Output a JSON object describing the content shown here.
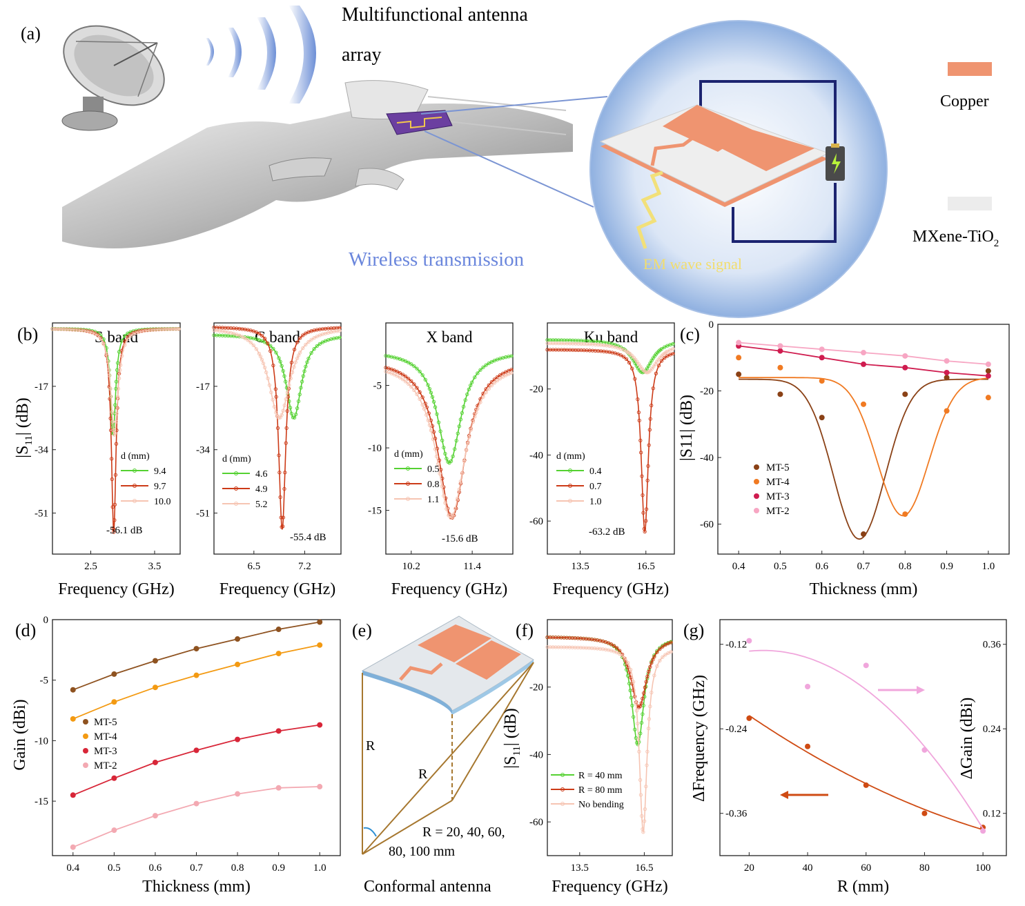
{
  "panel_a": {
    "label": "(a)",
    "title_line1": "Multifunctional antenna",
    "title_line2": "array",
    "wireless_label": "Wireless transmission",
    "em_label": "EM wave signal",
    "legend": [
      {
        "name": "Copper",
        "color": "#ef9470"
      },
      {
        "name": "MXene-TiO",
        "sub": "2",
        "color": "#ececec"
      }
    ]
  },
  "colors": {
    "green": "#54d131",
    "red": "#cc3a17",
    "pink": "#f6c4b2",
    "mt5": "#8a4116",
    "mt4": "#f07a22",
    "mt3": "#cf1c4f",
    "mt2": "#f7a6c3",
    "gain_mt5": "#8e5220",
    "gain_mt4": "#f39a12",
    "gain_mt3": "#d82638",
    "gain_mt2": "#f3a9b2",
    "g_pink": "#f0a6dc",
    "g_orange": "#cf4b13",
    "copper": "#ef9470"
  },
  "chart_data": [
    {
      "panel": "(b)",
      "type": "line",
      "title": "S band",
      "xlabel": "Frequency (GHz)",
      "ylabel": "|S11| (dB)",
      "xticks": [
        "2.5",
        "3.5"
      ],
      "yticks": [
        "-17",
        "-34",
        "-51"
      ],
      "xlim": [
        1.9,
        3.9
      ],
      "ylim": [
        -62,
        0
      ],
      "legend_title": "d (mm)",
      "annotation": "-56.1 dB",
      "series": [
        {
          "name": "9.4",
          "f0": 2.85,
          "depth": -30,
          "base": -1.5,
          "width": 0.05
        },
        {
          "name": "9.7",
          "f0": 2.86,
          "depth": -56.1,
          "base": -1.5,
          "width": 0.045
        },
        {
          "name": "10.0",
          "f0": 2.87,
          "depth": -30,
          "base": -1.5,
          "width": 0.07
        }
      ]
    },
    {
      "panel": "(b)",
      "type": "line",
      "title": "C band",
      "xlabel": "Frequency (GHz)",
      "ylabel": "",
      "xticks": [
        "6.5",
        "7.2"
      ],
      "yticks": [
        "-17",
        "-34",
        "-51"
      ],
      "xlim": [
        5.95,
        7.7
      ],
      "ylim": [
        -62,
        0
      ],
      "legend_title": "d (mm)",
      "annotation": "-55.4 dB",
      "series": [
        {
          "name": "4.6",
          "f0": 7.05,
          "depth": -25.5,
          "base": -3,
          "width": 0.13
        },
        {
          "name": "4.9",
          "f0": 6.89,
          "depth": -55.4,
          "base": -1,
          "width": 0.06
        },
        {
          "name": "5.2",
          "f0": 6.85,
          "depth": -25.5,
          "base": -1,
          "width": 0.18
        }
      ]
    },
    {
      "panel": "(b)",
      "type": "line",
      "title": "X band",
      "xlabel": "Frequency (GHz)",
      "ylabel": "",
      "xticks": [
        "10.2",
        "11.4"
      ],
      "yticks": [
        "-5",
        "-10",
        "-15"
      ],
      "xlim": [
        9.7,
        12.2
      ],
      "ylim": [
        -18.5,
        0
      ],
      "legend_title": "d (mm)",
      "annotation": "-15.6 dB",
      "series": [
        {
          "name": "0.5",
          "f0": 10.95,
          "depth": -11.2,
          "base": -2.2,
          "width": 0.28
        },
        {
          "name": "0.8",
          "f0": 11.0,
          "depth": -15.6,
          "base": -2.8,
          "width": 0.33
        },
        {
          "name": "1.1",
          "f0": 10.98,
          "depth": -15.6,
          "base": -3.0,
          "width": 0.35
        }
      ]
    },
    {
      "panel": "(b)",
      "type": "line",
      "title": "Ku band",
      "xlabel": "Frequency (GHz)",
      "ylabel": "",
      "xticks": [
        "13.5",
        "16.5"
      ],
      "yticks": [
        "-20",
        "-40",
        "-60"
      ],
      "xlim": [
        12.0,
        17.8
      ],
      "ylim": [
        -70,
        0
      ],
      "legend_title": "d (mm)",
      "annotation": "-63.2 dB",
      "series": [
        {
          "name": "0.4",
          "f0": 16.35,
          "depth": -15,
          "base": -5,
          "width": 0.55
        },
        {
          "name": "0.7",
          "f0": 16.45,
          "depth": -63.2,
          "base": -8,
          "width": 0.2
        },
        {
          "name": "1.0",
          "f0": 16.55,
          "depth": -15,
          "base": -6,
          "width": 0.6
        }
      ]
    },
    {
      "panel": "(c)",
      "type": "line",
      "xlabel": "Thickness (mm)",
      "ylabel": "|S11| (dB)",
      "x": [
        0.4,
        0.5,
        0.6,
        0.7,
        0.8,
        0.9,
        1.0
      ],
      "xticks": [
        "0.4",
        "0.5",
        "0.6",
        "0.7",
        "0.8",
        "0.9",
        "1.0"
      ],
      "yticks": [
        "0",
        "-20",
        "-40",
        "-60"
      ],
      "xlim": [
        0.35,
        1.05
      ],
      "ylim": [
        -69,
        0
      ],
      "series": [
        {
          "name": "MT-5",
          "values": [
            -15,
            -21,
            -28,
            -63,
            -21,
            -16,
            -14
          ],
          "fit": {
            "base": -16.5,
            "center": 0.69,
            "amp": -48,
            "width": 0.062
          }
        },
        {
          "name": "MT-4",
          "values": [
            -10,
            -13,
            -17,
            -24,
            -57,
            -26,
            -22
          ],
          "fit": {
            "base": -16,
            "center": 0.795,
            "amp": -41.5,
            "width": 0.062
          }
        },
        {
          "name": "MT-3",
          "values": [
            -6.5,
            -8,
            -10,
            -12,
            -13,
            -14.5,
            -15.5
          ]
        },
        {
          "name": "MT-2",
          "values": [
            -5.5,
            -6.5,
            -7.5,
            -8.5,
            -9.5,
            -11,
            -12
          ]
        }
      ]
    },
    {
      "panel": "(d)",
      "type": "line",
      "xlabel": "Thickness (mm)",
      "ylabel": "Gain (dBi)",
      "x": [
        0.4,
        0.5,
        0.6,
        0.7,
        0.8,
        0.9,
        1.0
      ],
      "xticks": [
        "0.4",
        "0.5",
        "0.6",
        "0.7",
        "0.8",
        "0.9",
        "1.0"
      ],
      "yticks": [
        "0",
        "-5",
        "-10",
        "-15"
      ],
      "xlim": [
        0.35,
        1.05
      ],
      "ylim": [
        -19.5,
        0
      ],
      "series": [
        {
          "name": "MT-5",
          "values": [
            -5.8,
            -4.5,
            -3.4,
            -2.4,
            -1.6,
            -0.8,
            -0.2
          ]
        },
        {
          "name": "MT-4",
          "values": [
            -8.2,
            -6.8,
            -5.6,
            -4.6,
            -3.7,
            -2.8,
            -2.1
          ]
        },
        {
          "name": "MT-3",
          "values": [
            -14.5,
            -13.1,
            -11.8,
            -10.8,
            -9.9,
            -9.2,
            -8.7
          ]
        },
        {
          "name": "MT-2",
          "values": [
            -18.8,
            -17.4,
            -16.2,
            -15.2,
            -14.4,
            -13.9,
            -13.8
          ]
        }
      ]
    },
    {
      "panel": "(f)",
      "type": "line",
      "xlabel": "Frequency (GHz)",
      "ylabel": "|S11| (dB)",
      "xticks": [
        "13.5",
        "16.5"
      ],
      "yticks": [
        "-20",
        "-40",
        "-60"
      ],
      "xlim": [
        12.0,
        17.8
      ],
      "ylim": [
        -70,
        0
      ],
      "series": [
        {
          "name": "R = 40 mm",
          "f0": 16.2,
          "depth": -37,
          "base": -5,
          "width": 0.35
        },
        {
          "name": "R = 80 mm",
          "f0": 16.25,
          "depth": -26,
          "base": -5,
          "width": 0.45
        },
        {
          "name": "No bending",
          "f0": 16.45,
          "depth": -63,
          "base": -8,
          "width": 0.22
        }
      ]
    },
    {
      "panel": "(g)",
      "type": "scatter",
      "xlabel": "R (mm)",
      "ylabel": "ΔFrequency (GHz)",
      "y2label": "ΔGain (dBi)",
      "x": [
        20,
        40,
        60,
        80,
        100
      ],
      "xticks": [
        "20",
        "40",
        "60",
        "80",
        "100"
      ],
      "yticks": [
        "-0.12",
        "-0.24",
        "-0.36"
      ],
      "y2ticks": [
        "0.36",
        "0.24",
        "0.12"
      ],
      "xlim": [
        10,
        108
      ],
      "ylim": [
        -0.42,
        -0.085
      ],
      "y2lim": [
        0.06,
        0.395
      ],
      "series": [
        {
          "name": "ΔFrequency",
          "axis": "left",
          "values": [
            -0.225,
            -0.265,
            -0.32,
            -0.36,
            -0.38
          ]
        },
        {
          "name": "ΔGain",
          "axis": "right",
          "values": [
            0.365,
            0.3,
            0.33,
            0.21,
            0.095
          ]
        }
      ]
    }
  ],
  "panel_e": {
    "label": "(e)",
    "r1": "R",
    "r2": "R",
    "radii_line1": "R = 20, 40, 60,",
    "radii_line2": "80, 100 mm",
    "caption": "Conformal antenna"
  }
}
